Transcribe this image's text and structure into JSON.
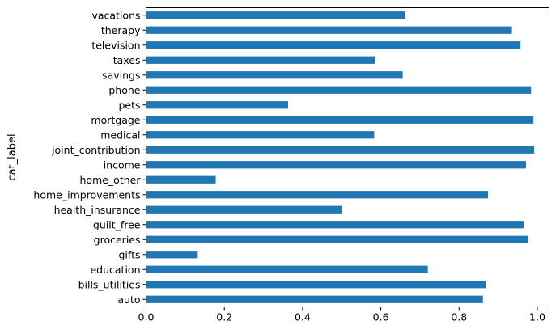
{
  "chart_data": {
    "type": "bar",
    "orientation": "horizontal",
    "categories": [
      "auto",
      "bills_utilities",
      "education",
      "gifts",
      "groceries",
      "guilt_free",
      "health_insurance",
      "home_improvements",
      "home_other",
      "income",
      "joint_contribution",
      "medical",
      "mortgage",
      "pets",
      "phone",
      "savings",
      "taxes",
      "television",
      "therapy",
      "vacations"
    ],
    "values": [
      0.861,
      0.868,
      0.72,
      0.132,
      0.977,
      0.965,
      0.5,
      0.874,
      0.178,
      0.971,
      0.992,
      0.583,
      0.99,
      0.363,
      0.984,
      0.656,
      0.585,
      0.957,
      0.935,
      0.663
    ],
    "title": "",
    "xlabel": "",
    "ylabel": "cat_label",
    "xlim": [
      0,
      1.03
    ],
    "xticks": [
      "0.0",
      "0.2",
      "0.4",
      "0.6",
      "0.8",
      "1.0"
    ],
    "bar_color": "#1f77b4",
    "grid": false,
    "legend": "none"
  }
}
